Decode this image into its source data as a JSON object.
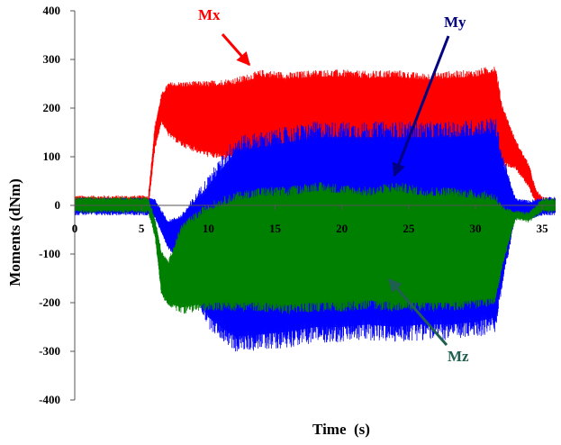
{
  "chart_data": {
    "type": "line",
    "title": "",
    "xlabel": "Time  (s)",
    "ylabel": "Moments (dNm)",
    "xlim": [
      0,
      36
    ],
    "ylim": [
      -400,
      400
    ],
    "x_ticks": [
      0,
      5,
      10,
      15,
      20,
      25,
      30,
      35
    ],
    "y_ticks": [
      -400,
      -300,
      -200,
      -100,
      0,
      100,
      200,
      300,
      400
    ],
    "grid": false,
    "legend": "none",
    "series": [
      {
        "name": "Mx",
        "color": "#ff0000",
        "x": [
          0,
          5.5,
          6,
          6.5,
          7,
          8,
          10,
          12,
          14,
          16,
          18,
          20,
          22,
          24,
          26,
          28,
          30,
          31.5,
          32,
          33,
          34,
          34.5,
          35,
          36
        ],
        "upper": [
          15,
          15,
          160,
          225,
          245,
          245,
          245,
          250,
          265,
          260,
          265,
          265,
          262,
          265,
          258,
          262,
          265,
          275,
          200,
          130,
          80,
          30,
          12,
          12
        ],
        "lower": [
          -5,
          -5,
          120,
          175,
          150,
          130,
          110,
          100,
          95,
          95,
          95,
          95,
          92,
          95,
          95,
          92,
          95,
          95,
          90,
          80,
          40,
          10,
          -5,
          -5
        ]
      },
      {
        "name": "My",
        "color": "#0000ff",
        "x": [
          0,
          5.5,
          6,
          6.5,
          7,
          8,
          10,
          12,
          14,
          16,
          18,
          20,
          22,
          24,
          26,
          28,
          30,
          31.5,
          32,
          33,
          34,
          35,
          36
        ],
        "upper": [
          10,
          10,
          10,
          -15,
          -35,
          -25,
          40,
          110,
          120,
          130,
          140,
          140,
          140,
          140,
          140,
          140,
          145,
          150,
          90,
          10,
          5,
          12,
          12
        ],
        "lower": [
          -15,
          -15,
          -20,
          -55,
          -85,
          -110,
          -230,
          -270,
          -265,
          -260,
          -250,
          -250,
          -245,
          -250,
          -245,
          -245,
          -240,
          -230,
          -150,
          -20,
          -25,
          -15,
          -15
        ]
      },
      {
        "name": "Mz",
        "color": "#008000",
        "x": [
          0,
          5.5,
          6,
          6.5,
          7,
          8,
          10,
          12,
          14,
          16,
          18,
          20,
          22,
          24,
          26,
          28,
          30,
          31.5,
          32,
          33,
          34,
          35,
          36
        ],
        "upper": [
          12,
          12,
          -30,
          -100,
          -120,
          -50,
          -10,
          10,
          20,
          20,
          30,
          25,
          20,
          30,
          20,
          20,
          15,
          10,
          -10,
          -15,
          -20,
          10,
          10
        ],
        "lower": [
          -10,
          -10,
          -60,
          -180,
          -200,
          -210,
          -200,
          -200,
          -200,
          -205,
          -200,
          -200,
          -195,
          -200,
          -200,
          -200,
          -195,
          -190,
          -120,
          -25,
          -30,
          -10,
          -10
        ]
      }
    ],
    "annotations": [
      {
        "text": "Mx",
        "color": "#ff0000"
      },
      {
        "text": "My",
        "color": "#000080"
      },
      {
        "text": "Mz",
        "color": "#1f5f4f"
      }
    ]
  }
}
